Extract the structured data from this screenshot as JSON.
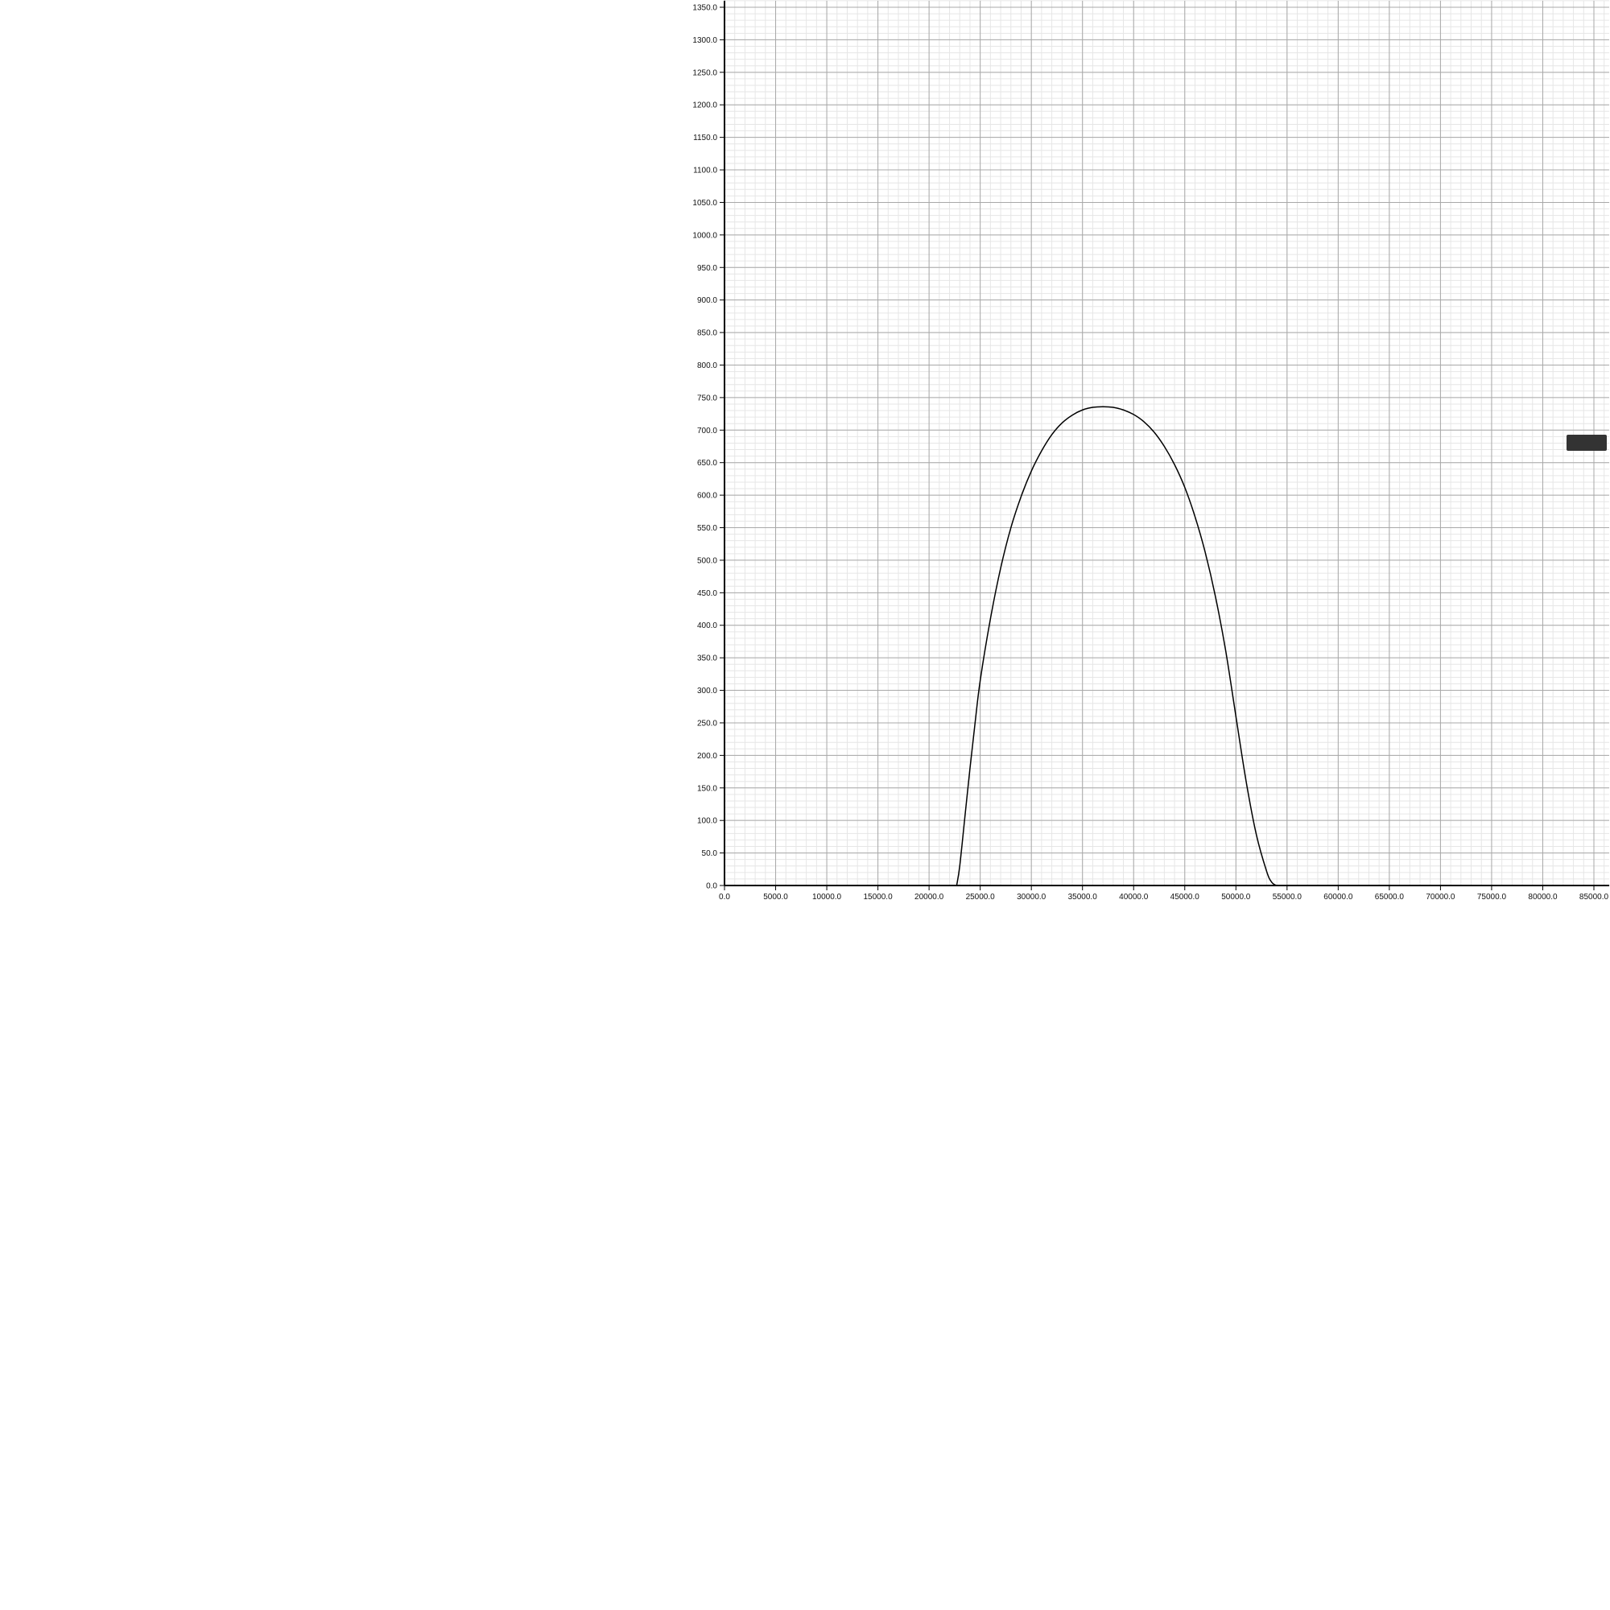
{
  "chart_data": {
    "type": "line",
    "title": "",
    "xlabel": "",
    "ylabel": "",
    "xlim": [
      0,
      86500
    ],
    "ylim": [
      0,
      1360
    ],
    "x_ticks": [
      0,
      5000,
      10000,
      15000,
      20000,
      25000,
      30000,
      35000,
      40000,
      45000,
      50000,
      55000,
      60000,
      65000,
      70000,
      75000,
      80000,
      85000
    ],
    "y_ticks": [
      0,
      50,
      100,
      150,
      200,
      250,
      300,
      350,
      400,
      450,
      500,
      550,
      600,
      650,
      700,
      750,
      800,
      850,
      900,
      950,
      1000,
      1050,
      1100,
      1150,
      1200,
      1250,
      1300,
      1350
    ],
    "grid": true,
    "series": [
      {
        "x": [
          22700,
          23000,
          23500,
          24000,
          24500,
          25000,
          26000,
          27000,
          28000,
          29000,
          30000,
          31000,
          32000,
          33000,
          34000,
          35000,
          36000,
          37000,
          38000,
          39000,
          40000,
          41000,
          42000,
          43000,
          44000,
          45000,
          46000,
          47000,
          48000,
          49000,
          50000,
          51000,
          52000,
          53000,
          53500,
          54000,
          54500,
          55000,
          55300
        ],
        "y": [
          0,
          30,
          105,
          180,
          250,
          315,
          410,
          488,
          550,
          598,
          637,
          668,
          693,
          711,
          723,
          731,
          735,
          736,
          735,
          731,
          724,
          713,
          697,
          675,
          647,
          612,
          567,
          512,
          444,
          361,
          260,
          160,
          78,
          22,
          5,
          0,
          0,
          0,
          0
        ],
        "color": "#000000"
      }
    ],
    "legend_swatch_color": "#333333"
  }
}
